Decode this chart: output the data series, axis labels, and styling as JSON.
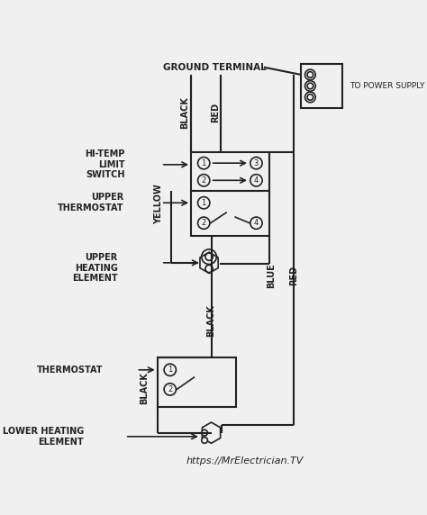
{
  "bg_color": "#f0f0f0",
  "line_color": "#222222",
  "title": "https://MrElectrician.TV",
  "labels": {
    "ground_terminal": "GROUND TERMINAL",
    "to_power_supply": "TO POWER SUPPLY",
    "hitemp": "HI-TEMP\nLIMIT\nSWITCH",
    "upper_thermostat": "UPPER\nTHERMOSTAT",
    "upper_heating": "UPPER\nHEATING\nELEMENT",
    "thermostat": "THERMOSTAT",
    "lower_heating": "LOWER HEATING\nELEMENT",
    "black1": "BLACK",
    "red1": "RED",
    "yellow": "YELLOW",
    "blue": "BLUE",
    "red2": "RED",
    "black2": "BLACK",
    "black3": "BLACK"
  }
}
